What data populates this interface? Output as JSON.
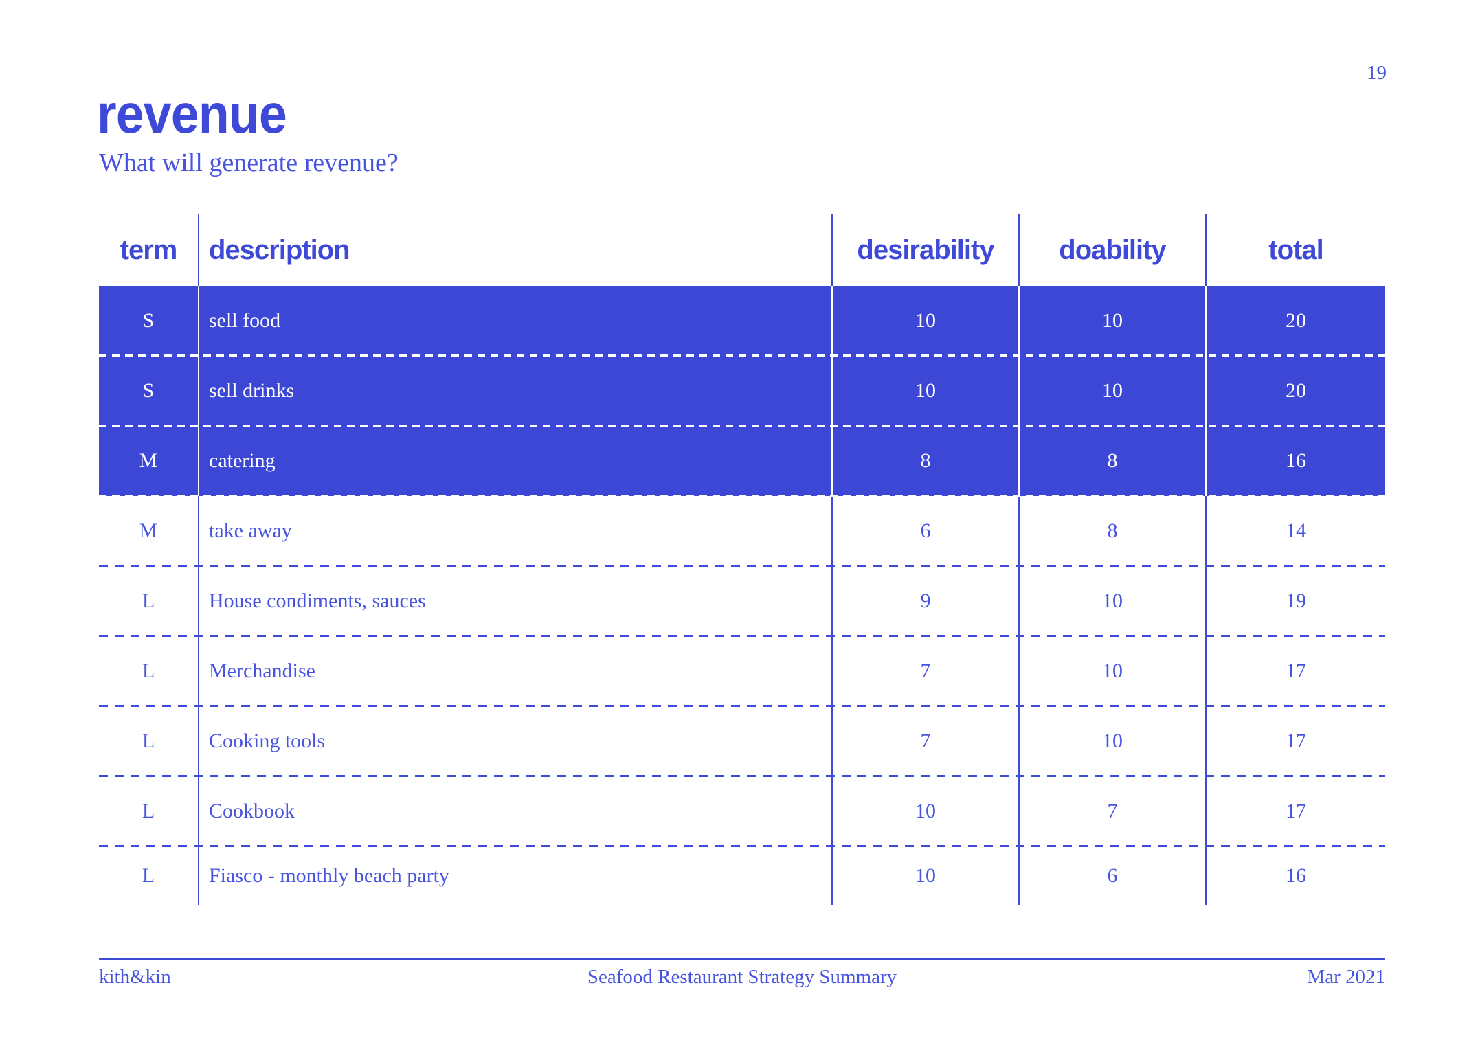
{
  "page": {
    "number": "19"
  },
  "header": {
    "title": "revenue",
    "subtitle": "What will generate revenue?"
  },
  "table": {
    "columns": [
      {
        "key": "term",
        "label": "term"
      },
      {
        "key": "description",
        "label": "description"
      },
      {
        "key": "desirability",
        "label": "desirability"
      },
      {
        "key": "doability",
        "label": "doability"
      },
      {
        "key": "total",
        "label": "total"
      }
    ],
    "rows": [
      {
        "term": "S",
        "description": "sell food",
        "desirability": "10",
        "doability": "10",
        "total": "20",
        "highlighted": true
      },
      {
        "term": "S",
        "description": "sell drinks",
        "desirability": "10",
        "doability": "10",
        "total": "20",
        "highlighted": true
      },
      {
        "term": "M",
        "description": "catering",
        "desirability": "8",
        "doability": "8",
        "total": "16",
        "highlighted": true
      },
      {
        "term": "M",
        "description": "take away",
        "desirability": "6",
        "doability": "8",
        "total": "14",
        "highlighted": false
      },
      {
        "term": "L",
        "description": "House condiments, sauces",
        "desirability": "9",
        "doability": "10",
        "total": "19",
        "highlighted": false
      },
      {
        "term": "L",
        "description": "Merchandise",
        "desirability": "7",
        "doability": "10",
        "total": "17",
        "highlighted": false
      },
      {
        "term": "L",
        "description": "Cooking tools",
        "desirability": "7",
        "doability": "10",
        "total": "17",
        "highlighted": false
      },
      {
        "term": "L",
        "description": "Cookbook",
        "desirability": "10",
        "doability": "7",
        "total": "17",
        "highlighted": false
      },
      {
        "term": "L",
        "description": "Fiasco - monthly beach party",
        "desirability": "10",
        "doability": "6",
        "total": "16",
        "highlighted": false
      }
    ]
  },
  "footer": {
    "left": "kith&kin",
    "center": "Seafood Restaurant Strategy Summary",
    "right": "Mar 2021"
  },
  "colors": {
    "accent_blue": "#3c48d5",
    "line_blue": "#3e4ad8",
    "serif_text_blue": "#4754df",
    "highlight_row_text": "#ffffff",
    "background": "#ffffff"
  }
}
